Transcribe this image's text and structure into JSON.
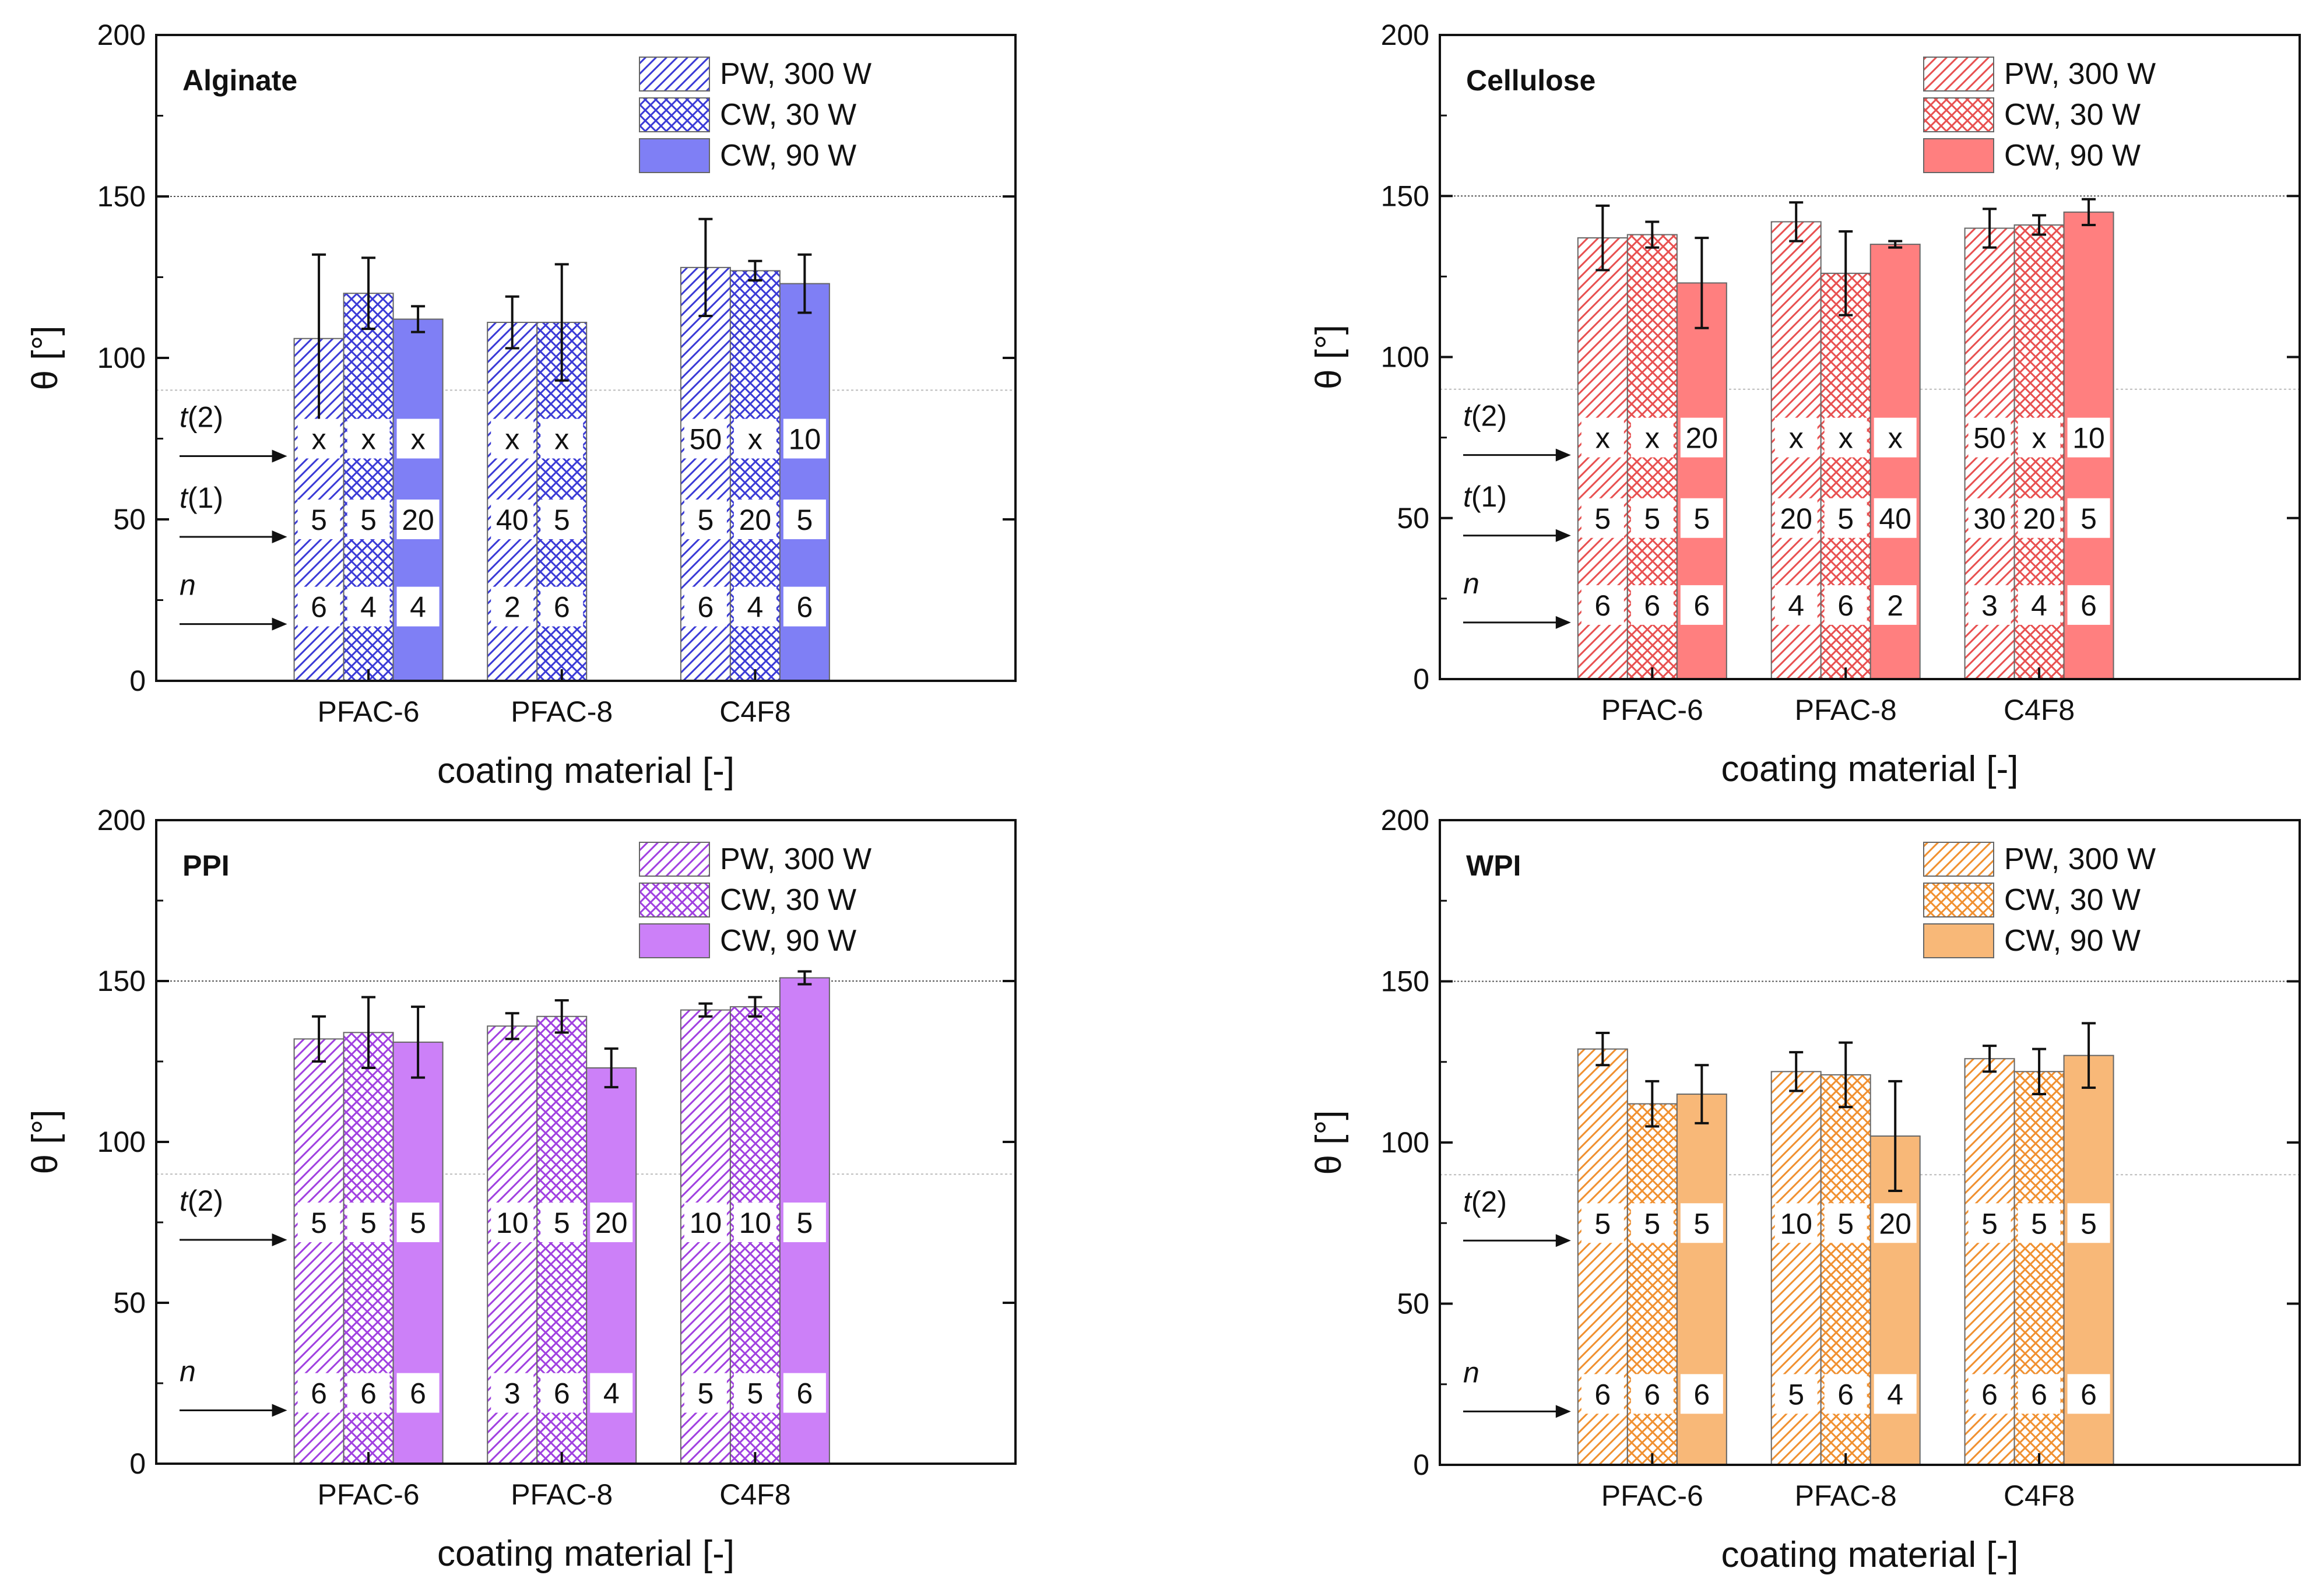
{
  "figure": {
    "description_label": "Contact angle by coating material"
  },
  "chart_data": [
    {
      "type": "bar",
      "title": "Alginate",
      "xlabel": "coating material [-]",
      "ylabel": "θ [°]",
      "ylim": [
        0,
        200
      ],
      "yticks": [
        "0",
        "50",
        "100",
        "150",
        "200"
      ],
      "reference_lines": [
        150,
        90
      ],
      "categories": [
        "PFAC-6",
        "PFAC-8",
        "C4F8"
      ],
      "color": "#3a3ad6",
      "fill_color": "#7f7ff5",
      "legend_position": "top-right",
      "series": [
        {
          "name": "PW, 300 W",
          "pattern": "hatch",
          "values": [
            106,
            111,
            128
          ],
          "errors": [
            26,
            8,
            15
          ]
        },
        {
          "name": "CW, 30 W",
          "pattern": "cross",
          "values": [
            120,
            111,
            127
          ],
          "errors": [
            11,
            18,
            3
          ]
        },
        {
          "name": "CW, 90 W",
          "pattern": "solid",
          "values": [
            112,
            null,
            123
          ],
          "errors": [
            4,
            null,
            9
          ]
        }
      ],
      "table_rows": [
        {
          "label_italic": "t",
          "label_rest": "(2)",
          "y": 75,
          "cells": [
            [
              "x",
              "x",
              "x"
            ],
            [
              "x",
              "x",
              ""
            ],
            [
              "50",
              "x",
              "10"
            ]
          ]
        },
        {
          "label_italic": "t",
          "label_rest": "(1)",
          "y": 50,
          "cells": [
            [
              "5",
              "5",
              "20"
            ],
            [
              "40",
              "5",
              ""
            ],
            [
              "5",
              "20",
              "5"
            ]
          ]
        },
        {
          "label_italic": "n",
          "label_rest": "",
          "y": 23,
          "cells": [
            [
              "6",
              "4",
              "4"
            ],
            [
              "2",
              "6",
              ""
            ],
            [
              "6",
              "4",
              "6"
            ]
          ]
        }
      ]
    },
    {
      "type": "bar",
      "title": "Cellulose",
      "xlabel": "coating material [-]",
      "ylabel": "θ [°]",
      "ylim": [
        0,
        200
      ],
      "yticks": [
        "0",
        "50",
        "100",
        "150",
        "200"
      ],
      "reference_lines": [
        150,
        90
      ],
      "categories": [
        "PFAC-6",
        "PFAC-8",
        "C4F8"
      ],
      "color": "#e85050",
      "fill_color": "#ff7f7f",
      "legend_position": "top-right",
      "series": [
        {
          "name": "PW, 300 W",
          "pattern": "hatch",
          "values": [
            137,
            142,
            140
          ],
          "errors": [
            10,
            6,
            6
          ]
        },
        {
          "name": "CW, 30 W",
          "pattern": "cross",
          "values": [
            138,
            126,
            141
          ],
          "errors": [
            4,
            13,
            3
          ]
        },
        {
          "name": "CW, 90 W",
          "pattern": "solid",
          "values": [
            123,
            135,
            145
          ],
          "errors": [
            14,
            1,
            4
          ]
        }
      ],
      "table_rows": [
        {
          "label_italic": "t",
          "label_rest": "(2)",
          "y": 75,
          "cells": [
            [
              "x",
              "x",
              "20"
            ],
            [
              "x",
              "x",
              "x"
            ],
            [
              "50",
              "x",
              "10"
            ]
          ]
        },
        {
          "label_italic": "t",
          "label_rest": "(1)",
          "y": 50,
          "cells": [
            [
              "5",
              "5",
              "5"
            ],
            [
              "20",
              "5",
              "40"
            ],
            [
              "30",
              "20",
              "5"
            ]
          ]
        },
        {
          "label_italic": "n",
          "label_rest": "",
          "y": 23,
          "cells": [
            [
              "6",
              "6",
              "6"
            ],
            [
              "4",
              "6",
              "2"
            ],
            [
              "3",
              "4",
              "6"
            ]
          ]
        }
      ]
    },
    {
      "type": "bar",
      "title": "PPI",
      "xlabel": "coating material [-]",
      "ylabel": "θ [°]",
      "ylim": [
        0,
        200
      ],
      "yticks": [
        "0",
        "50",
        "100",
        "150",
        "200"
      ],
      "reference_lines": [
        150,
        90
      ],
      "categories": [
        "PFAC-6",
        "PFAC-8",
        "C4F8"
      ],
      "color": "#a040e0",
      "fill_color": "#cc80f8",
      "legend_position": "top-right",
      "series": [
        {
          "name": "PW, 300 W",
          "pattern": "hatch",
          "values": [
            132,
            136,
            141
          ],
          "errors": [
            7,
            4,
            2
          ]
        },
        {
          "name": "CW, 30 W",
          "pattern": "cross",
          "values": [
            134,
            139,
            142
          ],
          "errors": [
            11,
            5,
            3
          ]
        },
        {
          "name": "CW, 90 W",
          "pattern": "solid",
          "values": [
            131,
            123,
            151
          ],
          "errors": [
            11,
            6,
            2
          ]
        }
      ],
      "table_rows": [
        {
          "label_italic": "t",
          "label_rest": "(2)",
          "y": 75,
          "cells": [
            [
              "5",
              "5",
              "5"
            ],
            [
              "10",
              "5",
              "20"
            ],
            [
              "10",
              "10",
              "5"
            ]
          ]
        },
        {
          "label_italic": "n",
          "label_rest": "",
          "y": 22,
          "cells": [
            [
              "6",
              "6",
              "6"
            ],
            [
              "3",
              "6",
              "4"
            ],
            [
              "5",
              "5",
              "6"
            ]
          ]
        }
      ]
    },
    {
      "type": "bar",
      "title": "WPI",
      "xlabel": "coating material [-]",
      "ylabel": "θ [°]",
      "ylim": [
        0,
        200
      ],
      "yticks": [
        "0",
        "50",
        "100",
        "150",
        "200"
      ],
      "reference_lines": [
        150,
        90
      ],
      "categories": [
        "PFAC-6",
        "PFAC-8",
        "C4F8"
      ],
      "color": "#f09030",
      "fill_color": "#f8b878",
      "legend_position": "top-right",
      "series": [
        {
          "name": "PW, 300 W",
          "pattern": "hatch",
          "values": [
            129,
            122,
            126
          ],
          "errors": [
            5,
            6,
            4
          ]
        },
        {
          "name": "CW, 30 W",
          "pattern": "cross",
          "values": [
            112,
            121,
            122
          ],
          "errors": [
            7,
            10,
            7
          ]
        },
        {
          "name": "CW, 90 W",
          "pattern": "solid",
          "values": [
            115,
            102,
            127
          ],
          "errors": [
            9,
            17,
            10
          ]
        }
      ],
      "table_rows": [
        {
          "label_italic": "t",
          "label_rest": "(2)",
          "y": 75,
          "cells": [
            [
              "5",
              "5",
              "5"
            ],
            [
              "10",
              "5",
              "20"
            ],
            [
              "5",
              "5",
              "5"
            ]
          ]
        },
        {
          "label_italic": "n",
          "label_rest": "",
          "y": 22,
          "cells": [
            [
              "6",
              "6",
              "6"
            ],
            [
              "5",
              "6",
              "4"
            ],
            [
              "6",
              "6",
              "6"
            ]
          ]
        }
      ]
    }
  ]
}
